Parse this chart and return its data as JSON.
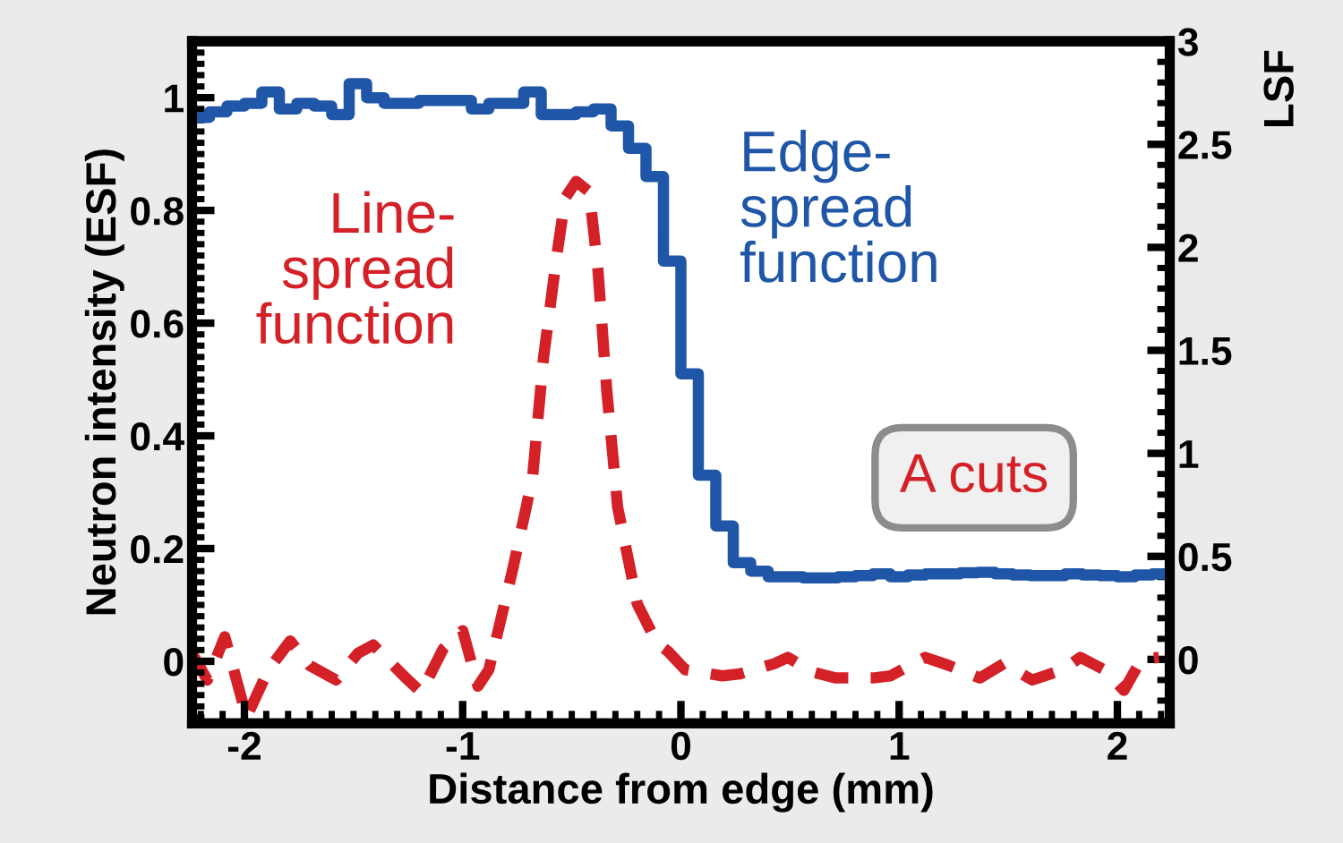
{
  "chart_data": {
    "type": "step",
    "xlabel": "Distance from edge (mm)",
    "ylabel": "Neutron intensity (ESF)",
    "y2label": "LSF",
    "xlim": [
      -2.24,
      2.24
    ],
    "xticks": [
      -2,
      -1,
      0,
      1,
      2
    ],
    "ylim": [
      -0.11,
      1.1
    ],
    "yticks": [
      0,
      0.2,
      0.4,
      0.6,
      0.8,
      1
    ],
    "y2lim": [
      -0.31,
      3
    ],
    "y2ticks": [
      0,
      0.5,
      1,
      1.5,
      2,
      2.5,
      3
    ],
    "grid": false,
    "legend": false,
    "series": [
      {
        "name": "Edge-\nspread\nfunction",
        "color": "#1f56a8",
        "line_style": "solid",
        "x": [
          -2.2,
          -2.12,
          -2.04,
          -1.96,
          -1.88,
          -1.8,
          -1.72,
          -1.64,
          -1.56,
          -1.48,
          -1.4,
          -1.32,
          -1.24,
          -1.16,
          -1.08,
          -1.0,
          -0.92,
          -0.84,
          -0.76,
          -0.68,
          -0.6,
          -0.52,
          -0.44,
          -0.36,
          -0.28,
          -0.2,
          -0.12,
          -0.04,
          0.04,
          0.12,
          0.2,
          0.28,
          0.36,
          0.44,
          0.52,
          0.6,
          0.68,
          0.76,
          0.84,
          0.92,
          1.0,
          1.08,
          1.16,
          1.24,
          1.32,
          1.4,
          1.48,
          1.56,
          1.64,
          1.72,
          1.8,
          1.88,
          1.96,
          2.04,
          2.12,
          2.2
        ],
        "values": [
          0.965,
          0.975,
          0.985,
          0.99,
          1.01,
          0.98,
          0.99,
          0.985,
          0.97,
          1.025,
          1.0,
          0.99,
          0.99,
          0.995,
          0.995,
          0.995,
          0.98,
          0.99,
          0.99,
          1.01,
          0.97,
          0.97,
          0.975,
          0.98,
          0.95,
          0.91,
          0.86,
          0.71,
          0.51,
          0.33,
          0.24,
          0.175,
          0.16,
          0.15,
          0.15,
          0.148,
          0.148,
          0.15,
          0.152,
          0.155,
          0.15,
          0.153,
          0.155,
          0.155,
          0.157,
          0.158,
          0.155,
          0.153,
          0.152,
          0.152,
          0.155,
          0.153,
          0.152,
          0.15,
          0.153,
          0.155
        ]
      },
      {
        "name": "Line-\nspread\nfunction",
        "type": "line",
        "axis": "y2",
        "color": "#d42027",
        "line_style": "dashed",
        "x": [
          -2.24,
          -2.17,
          -2.09,
          -1.99,
          -1.89,
          -1.79,
          -1.7,
          -1.58,
          -1.48,
          -1.41,
          -1.26,
          -1.19,
          -1.09,
          -1.0,
          -0.93,
          -0.88,
          -0.77,
          -0.68,
          -0.63,
          -0.57,
          -0.53,
          -0.48,
          -0.42,
          -0.38,
          -0.34,
          -0.29,
          -0.2,
          -0.11,
          -0.06,
          0.02,
          0.19,
          0.27,
          0.43,
          0.49,
          0.6,
          0.71,
          0.88,
          0.96,
          1.12,
          1.23,
          1.37,
          1.48,
          1.61,
          1.75,
          1.83,
          1.94,
          2.03,
          2.11,
          2.19
        ],
        "values": [
          0.03,
          -0.1,
          0.11,
          -0.28,
          -0.05,
          0.09,
          -0.03,
          -0.1,
          0.03,
          0.07,
          -0.09,
          -0.16,
          0.05,
          0.14,
          -0.13,
          -0.05,
          0.44,
          0.88,
          1.46,
          1.95,
          2.24,
          2.32,
          2.27,
          1.89,
          1.31,
          0.74,
          0.27,
          0.08,
          0.04,
          -0.05,
          -0.08,
          -0.07,
          -0.02,
          0.01,
          -0.06,
          -0.09,
          -0.09,
          -0.08,
          0.01,
          -0.03,
          -0.09,
          -0.02,
          -0.1,
          -0.05,
          0.01,
          -0.05,
          -0.15,
          0.0,
          0.01
        ]
      }
    ],
    "annotations": [
      "A cuts"
    ]
  }
}
